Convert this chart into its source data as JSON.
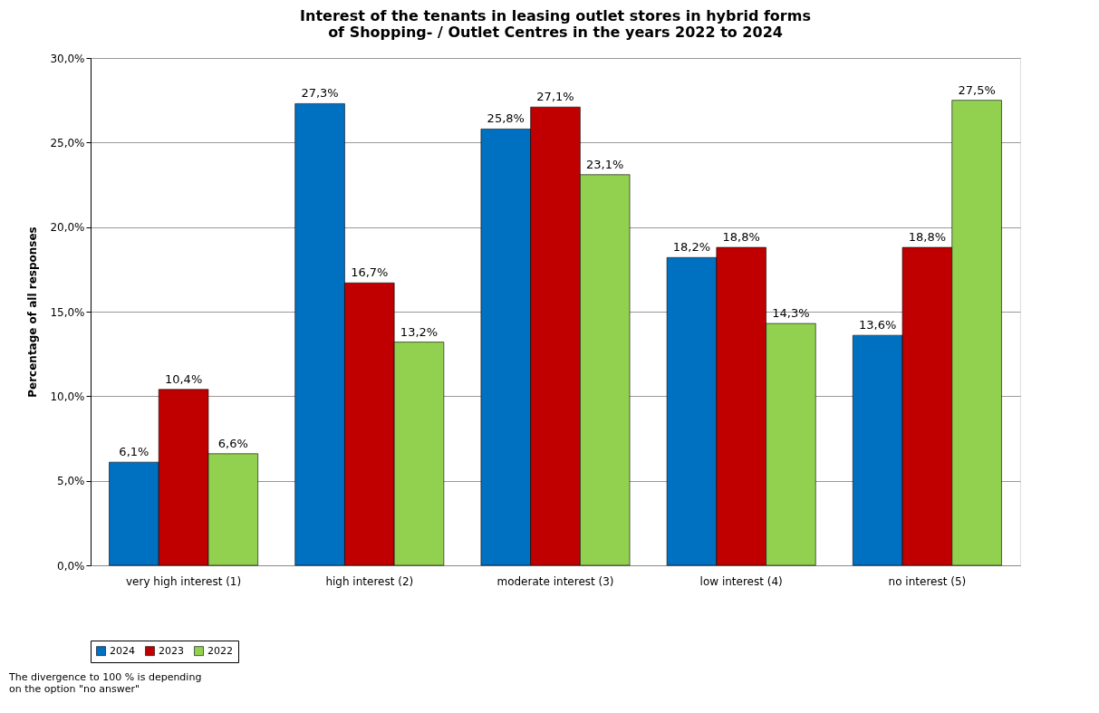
{
  "chart_data": {
    "type": "bar",
    "title": [
      "Interest of the tenants in leasing outlet stores in hybrid forms",
      "of Shopping- / Outlet Centres in the years 2022 to 2024"
    ],
    "ylabel": "Percentage of all responses",
    "categories": [
      "very high interest (1)",
      "high interest (2)",
      "moderate interest (3)",
      "low interest (4)",
      "no interest (5)"
    ],
    "series": [
      {
        "name": "2024",
        "color": "#0070c0",
        "values": [
          6.1,
          27.3,
          25.8,
          18.2,
          13.6
        ],
        "value_labels": [
          "6,1%",
          "27,3%",
          "25,8%",
          "18,2%",
          "13,6%"
        ]
      },
      {
        "name": "2023",
        "color": "#c00000",
        "values": [
          10.4,
          16.7,
          27.1,
          18.8,
          18.8
        ],
        "value_labels": [
          "10,4%",
          "16,7%",
          "27,1%",
          "18,8%",
          "18,8%"
        ]
      },
      {
        "name": "2022",
        "color": "#92d050",
        "values": [
          6.6,
          13.2,
          23.1,
          14.3,
          27.5
        ],
        "value_labels": [
          "6,6%",
          "13,2%",
          "23,1%",
          "14,3%",
          "27,5%"
        ]
      }
    ],
    "ylim": [
      0,
      30
    ],
    "yticks": [
      {
        "value": 0,
        "label": "0,0%"
      },
      {
        "value": 5,
        "label": "5,0%"
      },
      {
        "value": 10,
        "label": "10,0%"
      },
      {
        "value": 15,
        "label": "15,0%"
      },
      {
        "value": 20,
        "label": "20,0%"
      },
      {
        "value": 25,
        "label": "25,0%"
      },
      {
        "value": 30,
        "label": "30,0%"
      }
    ],
    "grid": "y",
    "legend": "bottom",
    "annotations": [
      "The divergence to 100 % is depending on the option \"no answer\""
    ]
  }
}
